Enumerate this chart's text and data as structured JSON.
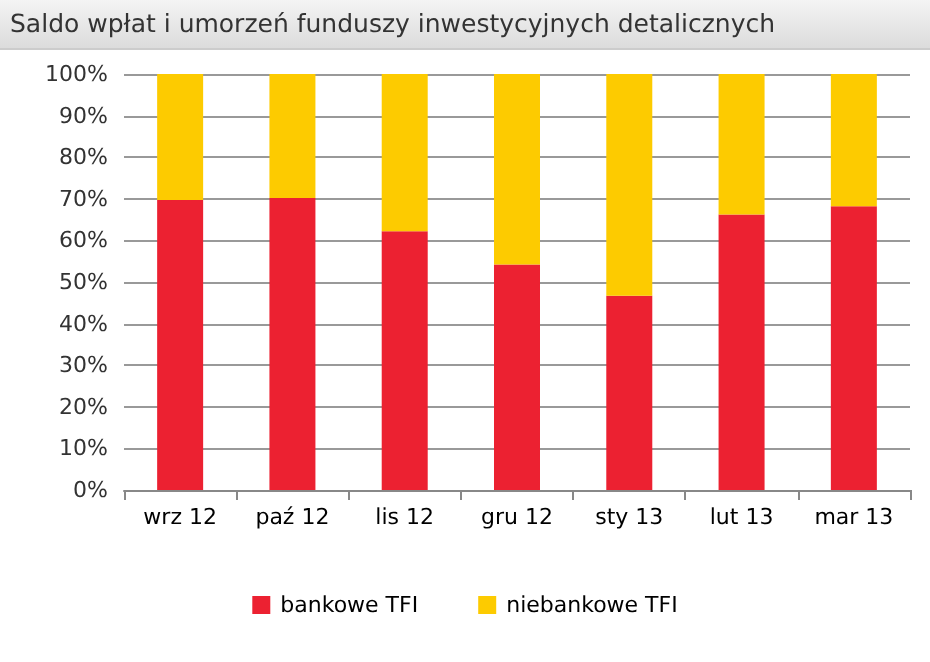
{
  "chart_data": {
    "type": "bar",
    "title": "Saldo wpłat i umorzeń funduszy inwestycyjnych detalicznych",
    "categories": [
      "wrz 12",
      "paź 12",
      "lis 12",
      "gru 12",
      "sty 13",
      "lut 13",
      "mar 13"
    ],
    "stacked": true,
    "series": [
      {
        "name": "bankowe TFI",
        "color": "#ec2131",
        "values": [
          69.7,
          70.2,
          62.2,
          54.2,
          46.7,
          66.2,
          68.2
        ]
      },
      {
        "name": "niebankowe TFI",
        "color": "#fdcb00",
        "values": [
          30.3,
          29.8,
          37.8,
          45.8,
          53.3,
          33.8,
          31.8
        ]
      }
    ],
    "ylim": [
      0,
      100
    ],
    "yticks": [
      {
        "value": 0,
        "label": "0%"
      },
      {
        "value": 10,
        "label": "10%"
      },
      {
        "value": 20,
        "label": "20%"
      },
      {
        "value": 30,
        "label": "30%"
      },
      {
        "value": 40,
        "label": "40%"
      },
      {
        "value": 50,
        "label": "50%"
      },
      {
        "value": 60,
        "label": "60%"
      },
      {
        "value": 70,
        "label": "70%"
      },
      {
        "value": 80,
        "label": "80%"
      },
      {
        "value": 90,
        "label": "90%"
      },
      {
        "value": 100,
        "label": "100%"
      }
    ],
    "grid": "y",
    "legend": "bottom"
  }
}
